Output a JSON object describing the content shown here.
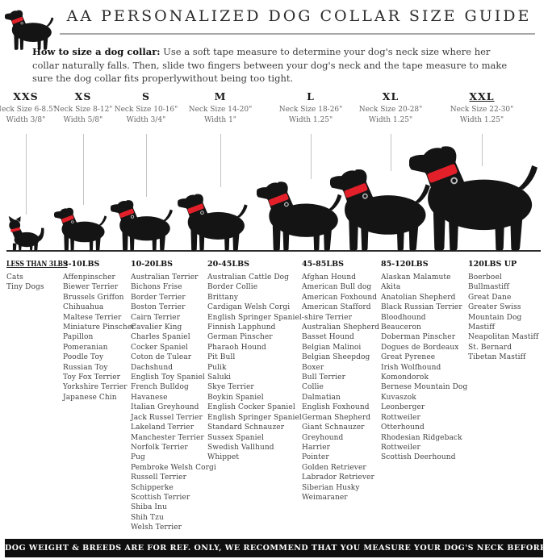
{
  "header": {
    "title": "AA PERSONALIZED DOG COLLAR SIZE GUIDE",
    "logo_icon": "black-dog-red-collar-logo"
  },
  "intro": {
    "lead": "How to size a dog collar:",
    "body": " Use a soft tape measure to determine your dog's neck size where her collar naturally falls. Then, slide two fingers between your dog's neck and the tape measure to make sure the dog collar fits properlywithout being too tight."
  },
  "sizes": [
    {
      "label": "XXS",
      "neck": "Neck Size 6-8.5\"",
      "width": "Width 3/8\"",
      "figure": "cat-silhouette",
      "underlined": false
    },
    {
      "label": "XS",
      "neck": "Neck Size 8-12\"",
      "width": "Width 5/8\"",
      "figure": "dog-silhouette",
      "underlined": false
    },
    {
      "label": "S",
      "neck": "Neck Size 10-16\"",
      "width": "Width 3/4\"",
      "figure": "dog-silhouette",
      "underlined": false
    },
    {
      "label": "M",
      "neck": "Neck Size 14-20\"",
      "width": "Width 1\"",
      "figure": "dog-silhouette",
      "underlined": false
    },
    {
      "label": "L",
      "neck": "Neck Size 18-26\"",
      "width": "Width 1.25\"",
      "figure": "dog-silhouette",
      "underlined": false
    },
    {
      "label": "XL",
      "neck": "Neck Size 20-28\"",
      "width": "Width 1.25\"",
      "figure": "dog-silhouette",
      "underlined": false
    },
    {
      "label": "XXL",
      "neck": "Neck Size 22-30\"",
      "width": "Width 1.25\"",
      "figure": "dog-silhouette",
      "underlined": true
    }
  ],
  "weight_groups": [
    {
      "label": "LESS THAN 3LBS",
      "underlined": true,
      "breeds": [
        "Cats",
        "Tiny Dogs"
      ]
    },
    {
      "label": "3-10LBS",
      "underlined": false,
      "breeds": [
        "Affenpinscher",
        "Biewer Terrier",
        "Brussels Griffon",
        "Chihuahua",
        "Maltese Terrier",
        "Miniature Pinscher",
        "Papillon",
        "Pomeranian",
        "Poodle Toy",
        "Russian Toy",
        "Toy Fox Terrier",
        "Yorkshire Terrier",
        "Japanese Chin"
      ]
    },
    {
      "label": "10-20LBS",
      "underlined": false,
      "breeds": [
        "Australian Terrier",
        "Bichons Frise",
        "Border Terrier",
        "Boston Terrier",
        "Cairn Terrier",
        "Cavalier King",
        "Charles Spaniel",
        "Cocker Spaniel",
        "Coton de Tulear",
        "Dachshund",
        "English Toy Spaniel",
        "French Bulldog",
        "Havanese",
        "Italian Greyhound",
        "Jack Russel Terrier",
        "Lakeland Terrier",
        "Manchester Terrier",
        "Norfolk Terrier",
        "Pug",
        "Pembroke Welsh Corgi",
        "Russell Terrier",
        "Schipperke",
        "Scottish Terrier",
        "Shiba Inu",
        "Shih Tzu",
        "Welsh Terrier"
      ]
    },
    {
      "label": "20-45LBS",
      "underlined": false,
      "breeds": [
        "Australian Cattle Dog",
        "Border Collie",
        "Brittany",
        "Cardigan Welsh Corgi",
        "English Springer Spaniel",
        "Finnish Lapphund",
        "German Pinscher",
        "Pharaoh Hound",
        "Pit Bull",
        "Pulik",
        "Saluki",
        "Skye Terrier",
        "Boykin Spaniel",
        "English Cocker Spaniel",
        "English Springer Spaniel",
        "Standard Schnauzer",
        "Sussex Spaniel",
        "Swedish Vallhund",
        "Whippet"
      ]
    },
    {
      "label": "45-85LBS",
      "underlined": false,
      "breeds": [
        "Afghan Hound",
        "American Bull dog",
        "American Foxhound",
        "American Stafford",
        "-shire Terrier",
        "Australian Shepherd",
        "Basset Hound",
        "Belgian Malinoi",
        "Belgian Sheepdog",
        "Boxer",
        "Bull Terrier",
        "Collie",
        "Dalmatian",
        "English Foxhound",
        "German Shepherd",
        "Giant Schnauzer",
        "Greyhound",
        "Harrier",
        "Pointer",
        "Golden Retriever",
        "Labrador Retriever",
        "Siberian Husky",
        "Weimaraner"
      ]
    },
    {
      "label": "85-120LBS",
      "underlined": false,
      "breeds": [
        "Alaskan Malamute",
        "Akita",
        "Anatolian Shepherd",
        "Black Russian Terrier",
        "Bloodhound",
        "Beauceron",
        "Doberman Pinscher",
        "Dogues de Bordeaux",
        "Great Pyrenee",
        "Irish Wolfhound",
        "Komondorok",
        "Bernese Mountain Dog",
        "Kuvaszok",
        "Leonberger",
        "Rottweiler",
        "Otterhound",
        "Rhodesian Ridgeback",
        "Rottweiler",
        "Scottish Deerhound"
      ]
    },
    {
      "label": "120LBS UP",
      "underlined": false,
      "breeds": [
        "Boerboel",
        "Bullmastiff",
        "Great Dane",
        "Greater Swiss",
        "Mountain Dog",
        "Mastiff",
        "Neapolitan Mastiff",
        "St. Bernard",
        "Tibetan Mastiff"
      ]
    }
  ],
  "footer": {
    "text": "DOG WEIGHT & BREEDS ARE FOR REF. ONLY, WE RECOMMEND THAT YOU MEASURE YOUR DOG'S NECK BEFORE PURCHASE"
  },
  "colors": {
    "collar_red": "#e3202a",
    "silhouette_black": "#141414",
    "line_gray": "#c3c3c3"
  }
}
